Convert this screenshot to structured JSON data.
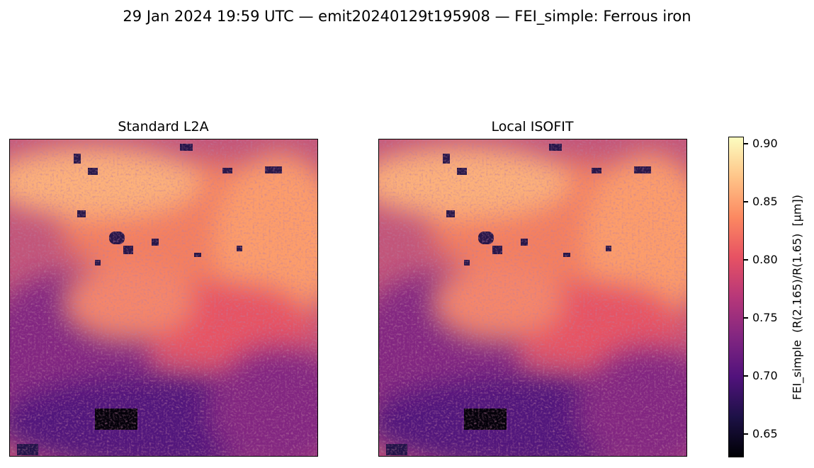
{
  "figure": {
    "suptitle": "29 Jan 2024 19:59 UTC — emit20240129t195908 — FEI_simple: Ferrous iron"
  },
  "panels": [
    {
      "title": "Standard L2A"
    },
    {
      "title": "Local ISOFIT"
    }
  ],
  "colorbar": {
    "label": "FEI_simple  (R(2.165)/R(1.65)  [μm])",
    "colormap": "magma",
    "range": [
      0.628,
      0.905
    ],
    "ticks": [
      "0.65",
      "0.70",
      "0.75",
      "0.80",
      "0.85",
      "0.90"
    ],
    "colors": [
      "#000004",
      "#1d1147",
      "#51127c",
      "#822681",
      "#b73779",
      "#e75263",
      "#fc8961",
      "#fec488",
      "#fcfdbf"
    ]
  }
}
